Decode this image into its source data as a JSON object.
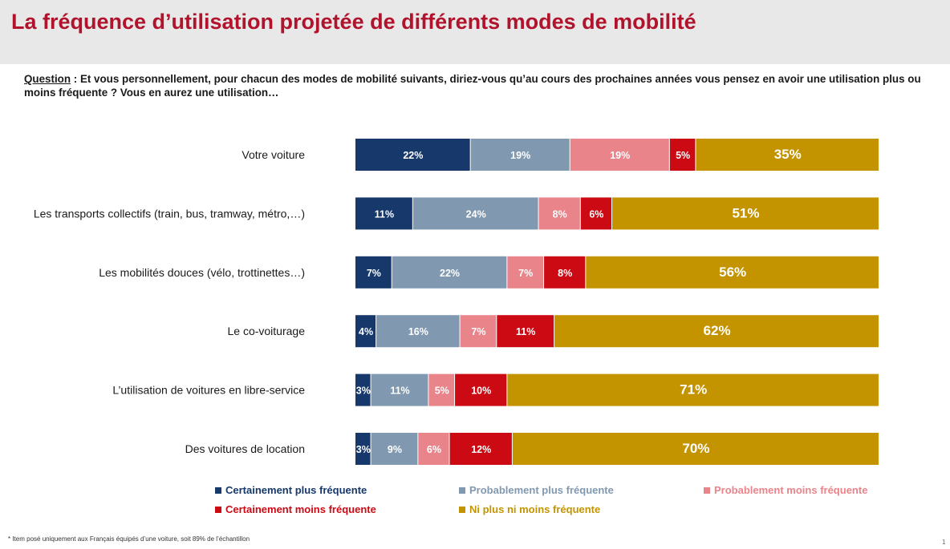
{
  "header": {
    "title": "La fréquence d’utilisation projetée de différents modes de mobilité"
  },
  "question": {
    "label": "Question",
    "separator": " :  ",
    "text": "Et vous personnellement, pour chacun des modes de mobilité suivants, diriez-vous qu’au cours des prochaines années vous pensez en avoir une utilisation plus ou moins fréquente ? Vous en aurez une utilisation…"
  },
  "chart_data": {
    "type": "bar",
    "orientation": "horizontal",
    "stacked": true,
    "categories": [
      "Votre voiture",
      "Les transports collectifs (train, bus, tramway, métro,…)",
      "Les mobilités douces (vélo, trottinettes…)",
      "Le co-voiturage",
      "L’utilisation de voitures en libre-service",
      "Des voitures de location"
    ],
    "series": [
      {
        "name": "Certainement plus fréquente",
        "color": "#16386b",
        "values": [
          22,
          11,
          7,
          4,
          3,
          3
        ]
      },
      {
        "name": "Probablement plus fréquente",
        "color": "#8099b0",
        "values": [
          19,
          24,
          22,
          16,
          11,
          9
        ]
      },
      {
        "name": "Probablement moins fréquente",
        "color": "#e8848a",
        "values": [
          19,
          8,
          7,
          7,
          5,
          6
        ]
      },
      {
        "name": "Certainement moins fréquente",
        "color": "#cc0a13",
        "values": [
          5,
          6,
          8,
          11,
          10,
          12
        ]
      },
      {
        "name": "Ni plus ni moins fréquente",
        "color": "#c49400",
        "values": [
          35,
          51,
          56,
          62,
          71,
          70
        ]
      }
    ],
    "unit": "%",
    "legend_position": "bottom",
    "grid": false
  },
  "footnote": {
    "text": "* Item posé uniquement aux Français équipés d’une voiture, soit 89% de l’échantillon"
  },
  "page": {
    "number": "1"
  }
}
